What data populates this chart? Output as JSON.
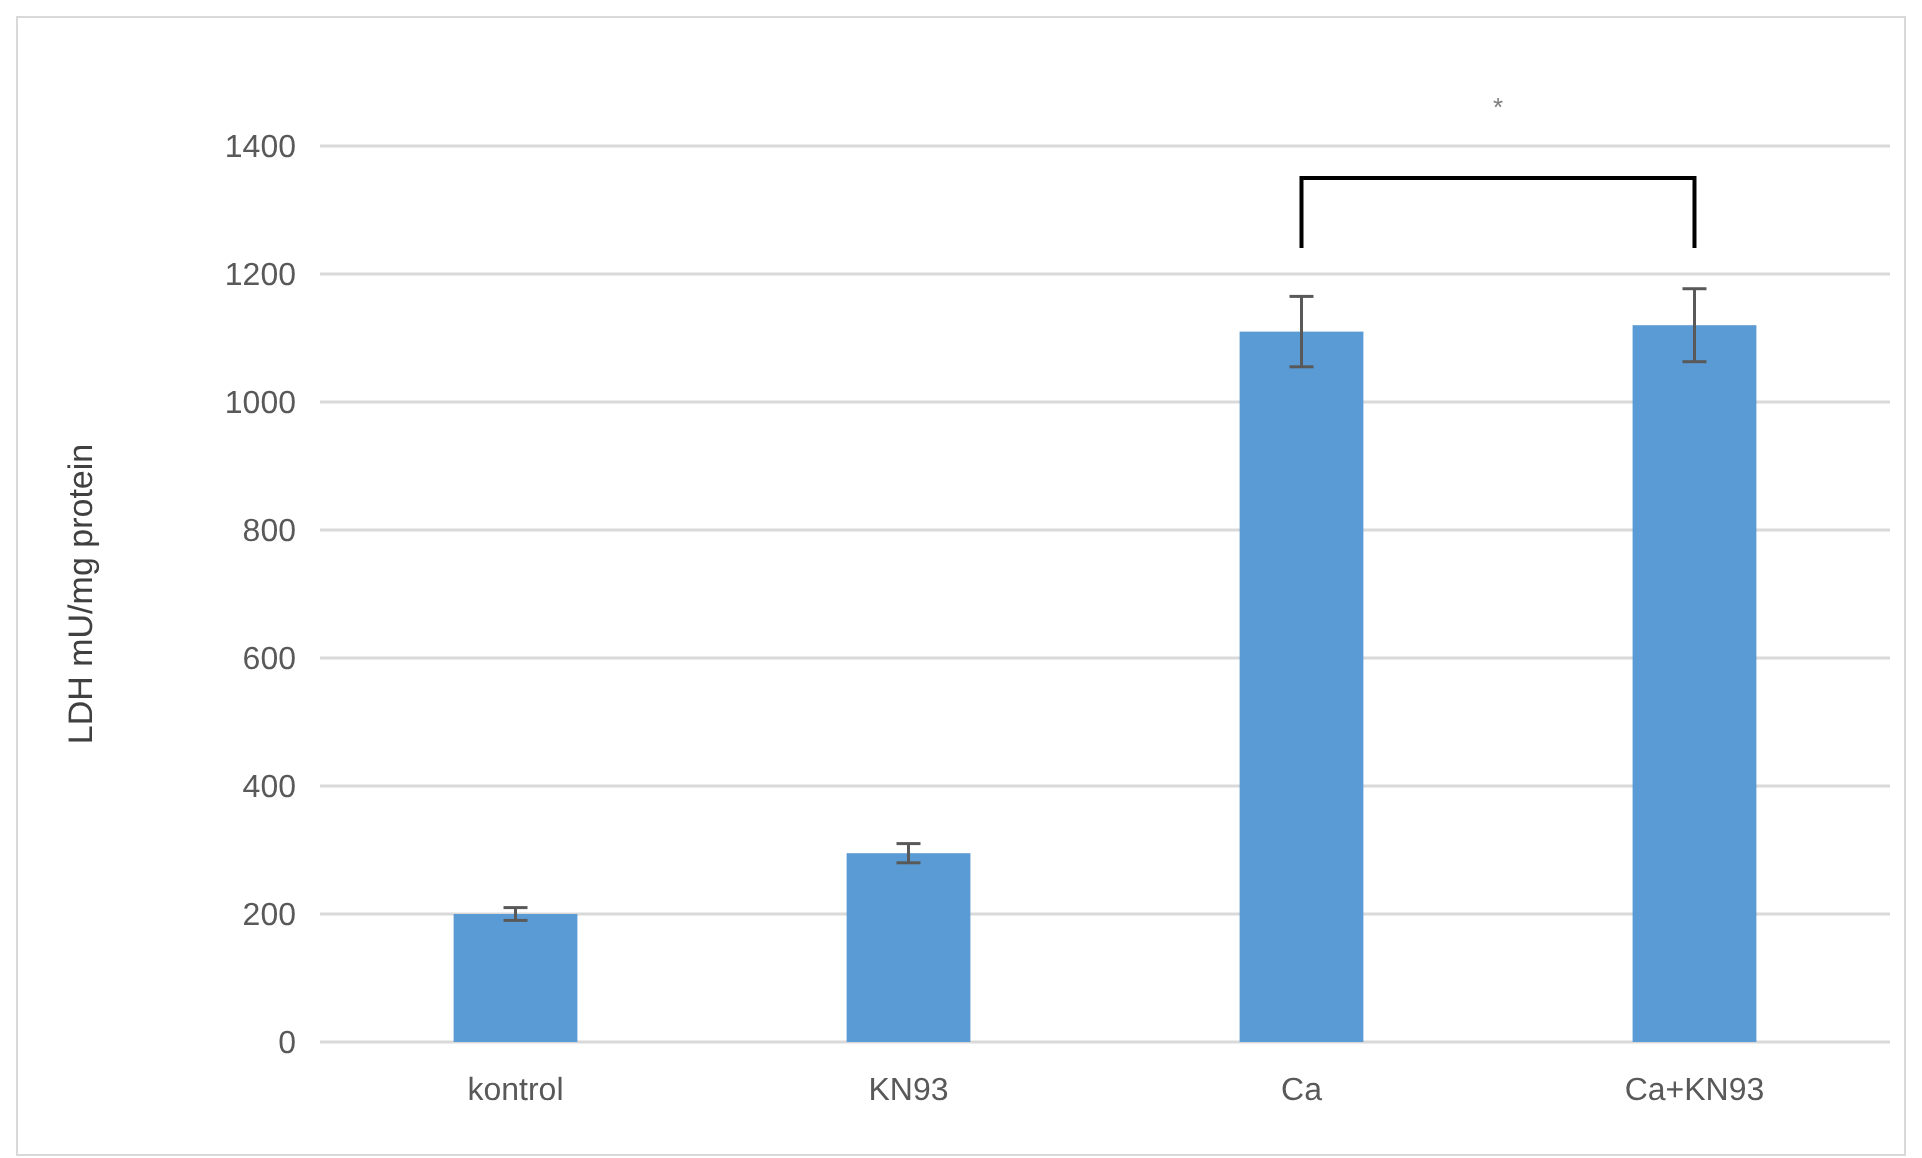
{
  "chart_data": {
    "type": "bar",
    "ylabel": "LDH mU/mg protein",
    "categories": [
      "kontrol",
      "KN93",
      "Ca",
      "Ca+KN93"
    ],
    "values": [
      200,
      295,
      1110,
      1120
    ],
    "errors": [
      10,
      15,
      55,
      57
    ],
    "color": "#5b9bd5",
    "ylim": [
      0,
      1400
    ],
    "yticks": [
      0,
      200,
      400,
      600,
      800,
      1000,
      1200,
      1400
    ],
    "grid": "y",
    "annotations": [
      "*"
    ]
  }
}
